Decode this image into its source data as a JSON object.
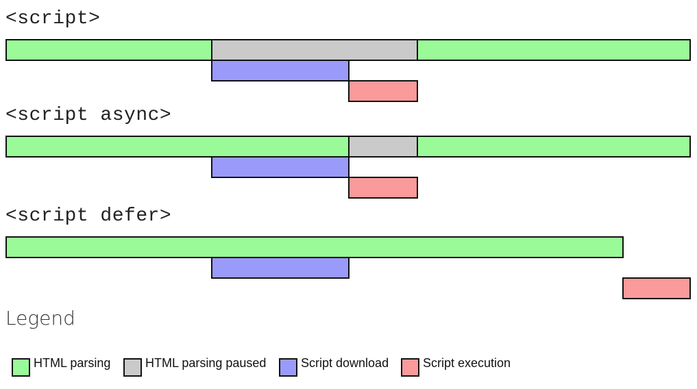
{
  "colors": {
    "parsing": "#9afa98",
    "paused": "#cacaca",
    "download": "#9a9afa",
    "execution": "#fa9a9a"
  },
  "sections": [
    {
      "title": "<script>"
    },
    {
      "title": "<script async>"
    },
    {
      "title": "<script defer>"
    }
  ],
  "legend": {
    "title": "Legend",
    "items": [
      {
        "label": "HTML parsing",
        "color": "#9afa98"
      },
      {
        "label": "HTML parsing paused",
        "color": "#cacaca"
      },
      {
        "label": "Script download",
        "color": "#9a9afa"
      },
      {
        "label": "Script execution",
        "color": "#fa9a9a"
      }
    ]
  },
  "timeline": {
    "script": [
      {
        "type": "parsing",
        "start": 0,
        "end": 3,
        "row": 0
      },
      {
        "type": "paused",
        "start": 3,
        "end": 6,
        "row": 0
      },
      {
        "type": "parsing",
        "start": 6,
        "end": 10,
        "row": 0
      },
      {
        "type": "download",
        "start": 3,
        "end": 5,
        "row": 1
      },
      {
        "type": "execution",
        "start": 5,
        "end": 6,
        "row": 2
      }
    ],
    "async": [
      {
        "type": "parsing",
        "start": 0,
        "end": 5,
        "row": 0
      },
      {
        "type": "paused",
        "start": 5,
        "end": 6,
        "row": 0
      },
      {
        "type": "parsing",
        "start": 6,
        "end": 10,
        "row": 0
      },
      {
        "type": "download",
        "start": 3,
        "end": 5,
        "row": 1
      },
      {
        "type": "execution",
        "start": 5,
        "end": 6,
        "row": 2
      }
    ],
    "defer": [
      {
        "type": "parsing",
        "start": 0,
        "end": 9,
        "row": 0
      },
      {
        "type": "download",
        "start": 3,
        "end": 5,
        "row": 1
      },
      {
        "type": "execution",
        "start": 9,
        "end": 10,
        "row": 2
      }
    ]
  }
}
